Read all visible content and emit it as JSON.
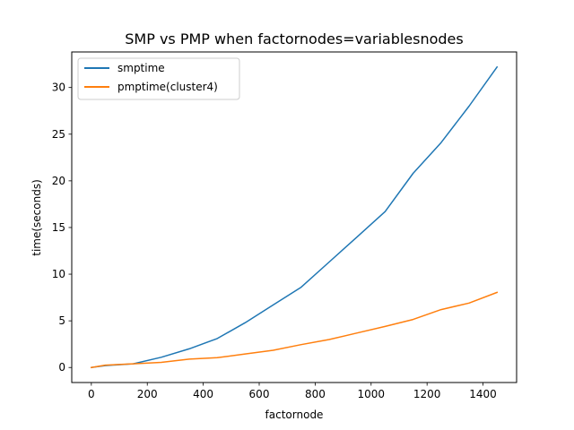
{
  "chart_data": {
    "type": "line",
    "title": "SMP vs PMP when factornodes=variablesnodes",
    "xlabel": "factornode",
    "ylabel": "time(seconds)",
    "xlim": [
      -70,
      1520
    ],
    "ylim": [
      -1.61,
      33.81
    ],
    "xticks": [
      0,
      200,
      400,
      600,
      800,
      1000,
      1200,
      1400
    ],
    "yticks": [
      0,
      5,
      10,
      15,
      20,
      25,
      30
    ],
    "grid": false,
    "legend_position": "top-left",
    "series": [
      {
        "name": "smptime",
        "color": "#1f77b4",
        "x": [
          0,
          50,
          150,
          250,
          350,
          450,
          550,
          650,
          750,
          850,
          950,
          1050,
          1150,
          1250,
          1350,
          1450
        ],
        "y": [
          0.0,
          0.2,
          0.4,
          1.1,
          2.0,
          3.1,
          4.8,
          6.7,
          8.6,
          11.3,
          14.0,
          16.7,
          20.8,
          24.1,
          28.0,
          32.2
        ]
      },
      {
        "name": "pmptime(cluster4)",
        "color": "#ff7f0e",
        "x": [
          0,
          50,
          150,
          250,
          350,
          450,
          550,
          650,
          750,
          850,
          950,
          1050,
          1150,
          1250,
          1350,
          1450
        ],
        "y": [
          0.0,
          0.25,
          0.4,
          0.55,
          0.9,
          1.05,
          1.45,
          1.85,
          2.45,
          3.0,
          3.7,
          4.4,
          5.15,
          6.2,
          6.9,
          8.05
        ]
      }
    ]
  }
}
